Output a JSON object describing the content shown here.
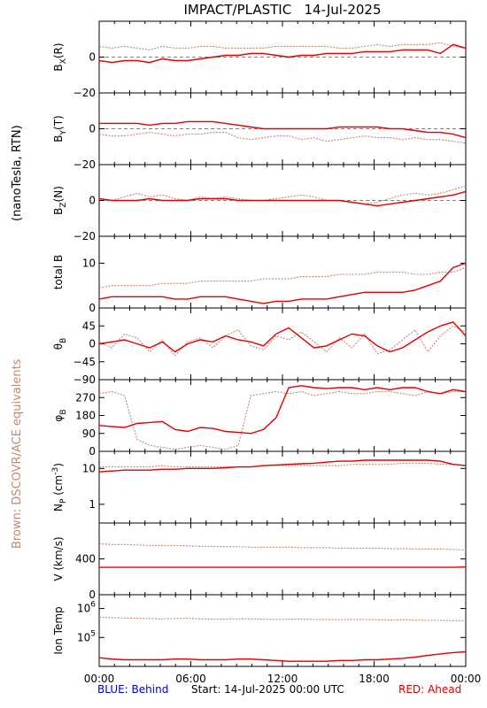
{
  "title": "IMPACT/PLASTIC   14-Jul-2025",
  "left_labels": {
    "units": "(nanoTesla, RTN)",
    "brown_note": "Brown: DSCOVR/ACE equivalents"
  },
  "footer": {
    "blue": "BLUE: Behind",
    "start": "Start: 14-Jul-2025 00:00 UTC",
    "red": "RED: Ahead"
  },
  "colors": {
    "brown": "#c08a70",
    "red": "#e00000",
    "blue": "#0000cc",
    "axis": "#000000"
  },
  "chart_data": [
    {
      "type": "line",
      "ylabel": "B_X(R)",
      "ylim": [
        -20,
        20
      ],
      "yticks": [
        0,
        -20
      ],
      "ytick_labels": [
        "0",
        "−20"
      ],
      "zero_line": true,
      "series": [
        {
          "color": "brown",
          "values": [
            6,
            5,
            6,
            5,
            4,
            6,
            5,
            5,
            6,
            6,
            5,
            5,
            5,
            5,
            6,
            6,
            6,
            6,
            6,
            5,
            5,
            6,
            7,
            6,
            7,
            7,
            7,
            8,
            6,
            5
          ]
        },
        {
          "color": "red",
          "values": [
            -2,
            -3,
            -2,
            -2,
            -3,
            -1,
            -2,
            -2,
            -1,
            0,
            1,
            1,
            2,
            2,
            1,
            0,
            1,
            1,
            2,
            2,
            2,
            3,
            3,
            3,
            4,
            4,
            4,
            2,
            7,
            5
          ]
        }
      ]
    },
    {
      "type": "line",
      "ylabel": "B_Y(T)",
      "ylim": [
        -20,
        20
      ],
      "yticks": [
        0,
        -20
      ],
      "ytick_labels": [
        "0",
        "−20"
      ],
      "zero_line": true,
      "series": [
        {
          "color": "brown",
          "values": [
            -3,
            -4,
            -4,
            -3,
            -2,
            -3,
            -4,
            -3,
            -3,
            -2,
            -2,
            -5,
            -6,
            -5,
            -4,
            -4,
            -6,
            -5,
            -7,
            -6,
            -5,
            -4,
            -5,
            -5,
            -6,
            -5,
            -6,
            -6,
            -7,
            -8
          ]
        },
        {
          "color": "red",
          "values": [
            3,
            3,
            3,
            3,
            2,
            3,
            3,
            4,
            4,
            4,
            3,
            2,
            1,
            0,
            0,
            0,
            0,
            0,
            0,
            1,
            1,
            1,
            1,
            0,
            0,
            -1,
            -2,
            -2,
            -3,
            -5
          ]
        }
      ]
    },
    {
      "type": "line",
      "ylabel": "B_Z(N)",
      "ylim": [
        -20,
        20
      ],
      "yticks": [
        0,
        -20
      ],
      "ytick_labels": [
        "0",
        "−20"
      ],
      "zero_line": true,
      "series": [
        {
          "color": "brown",
          "values": [
            1,
            0,
            2,
            4,
            2,
            3,
            1,
            0,
            2,
            1,
            2,
            1,
            0,
            0,
            1,
            2,
            3,
            2,
            0,
            0,
            -1,
            -2,
            -1,
            1,
            3,
            4,
            3,
            4,
            6,
            8
          ]
        },
        {
          "color": "red",
          "values": [
            1,
            0,
            0,
            0,
            1,
            0,
            0,
            0,
            1,
            1,
            1,
            0,
            0,
            0,
            0,
            0,
            0,
            0,
            0,
            0,
            -1,
            -2,
            -3,
            -2,
            -1,
            0,
            1,
            2,
            3,
            5
          ]
        }
      ]
    },
    {
      "type": "line",
      "ylabel": "total B",
      "ylim": [
        0,
        16
      ],
      "yticks": [
        10,
        0
      ],
      "ytick_labels": [
        "10",
        "0"
      ],
      "zero_line": false,
      "series": [
        {
          "color": "brown",
          "values": [
            4.5,
            5,
            5,
            5,
            5,
            5.5,
            5.5,
            5.5,
            6,
            6,
            6,
            6,
            6,
            6.5,
            6.5,
            6.5,
            7,
            7,
            7,
            7.5,
            7.5,
            7.5,
            8,
            8,
            8,
            7.5,
            7.5,
            8,
            8,
            9
          ]
        },
        {
          "color": "red",
          "values": [
            2,
            2.5,
            2.5,
            2.5,
            2.5,
            2.5,
            2,
            2,
            2.5,
            2.5,
            2.5,
            2,
            1.5,
            1,
            1.5,
            1.5,
            2,
            2,
            2,
            2.5,
            3,
            3.5,
            3.5,
            3.5,
            3.5,
            4,
            5,
            6,
            9,
            10
          ]
        }
      ]
    },
    {
      "type": "line",
      "ylabel": "θ_B",
      "ylim": [
        -90,
        90
      ],
      "yticks": [
        45,
        0,
        -45,
        -90
      ],
      "ytick_labels": [
        "45",
        "0",
        "−45",
        "−90"
      ],
      "zero_line": false,
      "series": [
        {
          "color": "brown",
          "values": [
            5,
            -10,
            25,
            15,
            -20,
            10,
            -30,
            5,
            15,
            -10,
            20,
            35,
            -5,
            -15,
            20,
            10,
            30,
            5,
            -20,
            15,
            -10,
            25,
            -25,
            -15,
            10,
            35,
            -20,
            20,
            45,
            30
          ]
        },
        {
          "color": "red",
          "values": [
            0,
            5,
            10,
            0,
            -10,
            5,
            -20,
            0,
            10,
            5,
            20,
            10,
            5,
            -5,
            25,
            40,
            15,
            -10,
            -5,
            10,
            25,
            20,
            -5,
            -20,
            -10,
            10,
            30,
            45,
            55,
            20
          ]
        }
      ]
    },
    {
      "type": "line",
      "ylabel": "φ_B",
      "ylim": [
        0,
        360
      ],
      "yticks": [
        270,
        180,
        90,
        0
      ],
      "ytick_labels": [
        "270",
        "180",
        "90",
        "0"
      ],
      "zero_line": false,
      "series": [
        {
          "color": "brown",
          "values": [
            290,
            300,
            280,
            60,
            30,
            20,
            10,
            20,
            30,
            20,
            10,
            30,
            280,
            290,
            300,
            290,
            300,
            280,
            290,
            300,
            290,
            290,
            300,
            300,
            290,
            280,
            300,
            290,
            300,
            300
          ]
        },
        {
          "color": "red",
          "values": [
            130,
            125,
            120,
            140,
            145,
            150,
            110,
            100,
            120,
            115,
            100,
            95,
            90,
            110,
            170,
            320,
            330,
            320,
            315,
            320,
            320,
            310,
            320,
            310,
            320,
            320,
            300,
            290,
            310,
            300
          ]
        }
      ]
    },
    {
      "type": "line",
      "ylabel": "N_P (cm^-3)",
      "ylim": [
        0.3,
        30
      ],
      "log": true,
      "yticks": [
        10,
        1
      ],
      "ytick_labels": [
        "10",
        "1"
      ],
      "zero_line": false,
      "series": [
        {
          "color": "brown",
          "values": [
            11,
            11,
            11,
            11,
            11,
            12,
            11,
            11,
            11,
            11,
            11,
            11,
            11,
            12,
            12,
            12,
            12,
            12,
            12,
            12,
            13,
            13,
            13,
            13,
            14,
            14,
            14,
            13,
            13,
            12
          ]
        },
        {
          "color": "red",
          "values": [
            8,
            8.5,
            9,
            9,
            9,
            9.5,
            9.5,
            10,
            10,
            10,
            10.5,
            11,
            11,
            12,
            12.5,
            13,
            13.5,
            14,
            15,
            16,
            16,
            17,
            17,
            17,
            17,
            17,
            17,
            16,
            13,
            12
          ]
        }
      ]
    },
    {
      "type": "line",
      "ylabel": "V (km/s)",
      "ylim": [
        0,
        800
      ],
      "yticks": [
        400,
        0
      ],
      "ytick_labels": [
        "400",
        "0"
      ],
      "zero_line": false,
      "series": [
        {
          "color": "brown",
          "values": [
            570,
            560,
            560,
            555,
            550,
            550,
            550,
            545,
            540,
            540,
            535,
            535,
            530,
            530,
            530,
            530,
            525,
            525,
            525,
            520,
            520,
            520,
            520,
            515,
            515,
            510,
            510,
            510,
            505,
            500
          ]
        },
        {
          "color": "red",
          "values": [
            305,
            305,
            305,
            305,
            305,
            305,
            305,
            305,
            305,
            305,
            305,
            305,
            305,
            305,
            305,
            305,
            305,
            305,
            305,
            305,
            305,
            305,
            305,
            305,
            305,
            305,
            305,
            305,
            305,
            310
          ]
        }
      ]
    },
    {
      "type": "line",
      "ylabel": "Ion Temp",
      "ylim": [
        10000,
        3000000
      ],
      "log": true,
      "yticks": [
        1000000,
        100000
      ],
      "ytick_labels": [
        "10^6",
        "10^5"
      ],
      "zero_line": false,
      "series": [
        {
          "color": "brown",
          "values": [
            500000,
            480000,
            470000,
            460000,
            450000,
            440000,
            450000,
            460000,
            440000,
            430000,
            430000,
            440000,
            440000,
            430000,
            420000,
            430000,
            430000,
            420000,
            420000,
            410000,
            420000,
            420000,
            410000,
            400000,
            410000,
            400000,
            390000,
            390000,
            380000,
            380000
          ]
        },
        {
          "color": "red",
          "values": [
            20000,
            18000,
            17000,
            17000,
            17000,
            17000,
            18000,
            18000,
            17000,
            17000,
            17000,
            18000,
            18000,
            17000,
            16000,
            15000,
            15000,
            15000,
            15000,
            16000,
            16000,
            17000,
            17000,
            18000,
            19000,
            21000,
            24000,
            27000,
            30000,
            32000
          ]
        }
      ]
    }
  ],
  "x_axis": {
    "tick_labels": [
      "00:00",
      "06:00",
      "12:00",
      "18:00",
      "00:00"
    ]
  }
}
